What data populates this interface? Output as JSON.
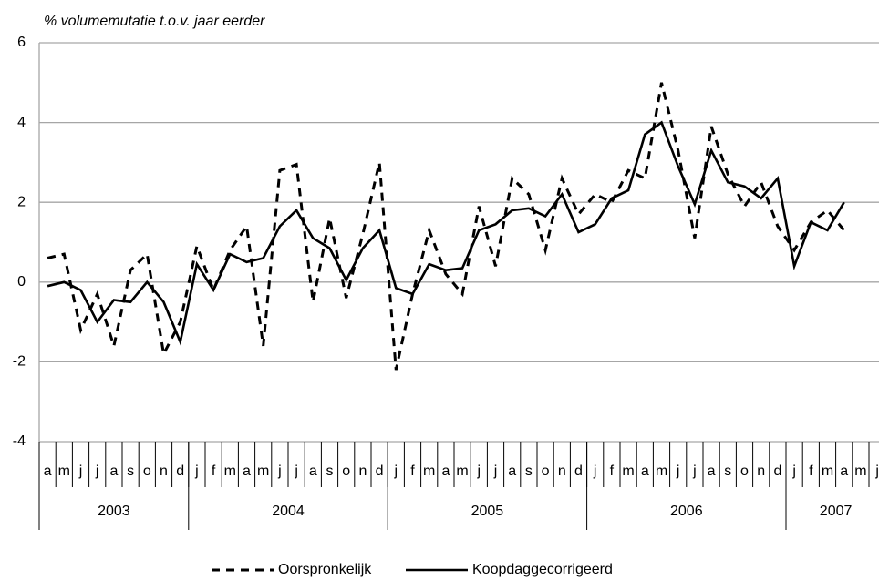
{
  "chart_data": {
    "type": "line",
    "y_axis_title": "% volumemutatie t.o.v. jaar eerder",
    "categories": [
      "a",
      "m",
      "j",
      "j",
      "a",
      "s",
      "o",
      "n",
      "d",
      "j",
      "f",
      "m",
      "a",
      "m",
      "j",
      "j",
      "a",
      "s",
      "o",
      "n",
      "d",
      "j",
      "f",
      "m",
      "a",
      "m",
      "j",
      "j",
      "a",
      "s",
      "o",
      "n",
      "d",
      "j",
      "f",
      "m",
      "a",
      "m",
      "j",
      "j",
      "a",
      "s",
      "o",
      "n",
      "d",
      "j",
      "f",
      "m",
      "a",
      "m",
      "j"
    ],
    "x_groups": [
      {
        "label": "2003",
        "count": 9
      },
      {
        "label": "2004",
        "count": 12
      },
      {
        "label": "2005",
        "count": 12
      },
      {
        "label": "2006",
        "count": 12
      },
      {
        "label": "2007",
        "count": 6
      }
    ],
    "series": [
      {
        "name": "Oorspronkelijk",
        "color": "#000000",
        "dash": true,
        "values": [
          0.6,
          0.7,
          -1.2,
          -0.3,
          -1.6,
          0.3,
          0.7,
          -1.8,
          -1.0,
          0.9,
          -0.2,
          0.8,
          1.4,
          -1.6,
          2.8,
          2.95,
          -0.5,
          1.6,
          -0.4,
          1.2,
          3.0,
          -2.2,
          -0.3,
          1.3,
          0.2,
          -0.3,
          1.9,
          0.4,
          2.6,
          2.2,
          0.8,
          2.6,
          1.7,
          2.2,
          2.0,
          2.8,
          2.6,
          5.0,
          3.3,
          1.1,
          3.9,
          2.7,
          1.9,
          2.5,
          1.4,
          0.8,
          1.5,
          1.8,
          1.3,
          null,
          null
        ]
      },
      {
        "name": "Koopdaggecorrigeerd",
        "color": "#000000",
        "dash": false,
        "values": [
          -0.1,
          0.0,
          -0.2,
          -1.0,
          -0.45,
          -0.5,
          0.0,
          -0.5,
          -1.5,
          0.45,
          -0.2,
          0.7,
          0.5,
          0.6,
          1.4,
          1.8,
          1.1,
          0.85,
          0.05,
          0.85,
          1.3,
          -0.15,
          -0.3,
          0.45,
          0.3,
          0.35,
          1.3,
          1.45,
          1.8,
          1.85,
          1.65,
          2.2,
          1.25,
          1.45,
          2.1,
          2.3,
          3.7,
          4.0,
          2.9,
          1.95,
          3.3,
          2.5,
          2.4,
          2.1,
          2.6,
          0.4,
          1.5,
          1.3,
          2.0,
          null,
          null
        ]
      }
    ],
    "ylim": [
      -4,
      6
    ],
    "yticks": [
      -4,
      -2,
      0,
      2,
      4,
      6
    ],
    "grid": true
  }
}
